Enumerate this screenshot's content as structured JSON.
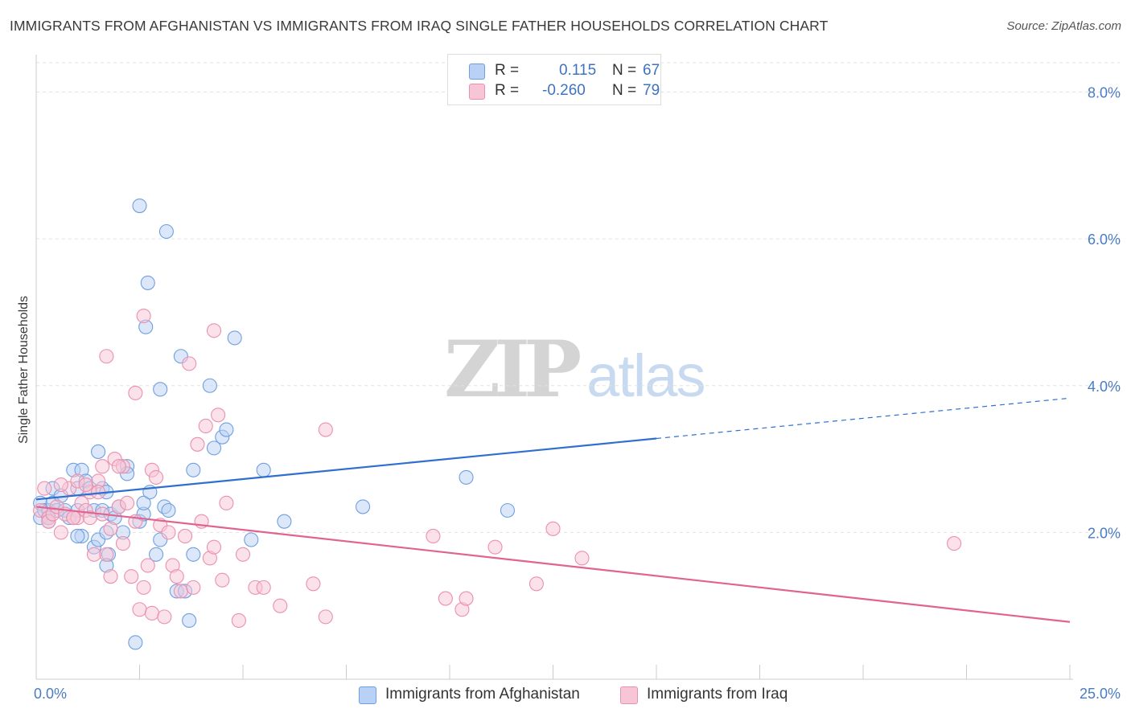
{
  "title": "IMMIGRANTS FROM AFGHANISTAN VS IMMIGRANTS FROM IRAQ SINGLE FATHER HOUSEHOLDS CORRELATION CHART",
  "source": "Source: ZipAtlas.com",
  "watermark": {
    "zip": "ZIP",
    "atlas": "atlas"
  },
  "colors": {
    "afghanistan": "#6f9fe0",
    "afghanistan_fill": "#b9d1f4",
    "afghanistan_line": "#2f6fcf",
    "iraq": "#ec8fae",
    "iraq_fill": "#f7c6d6",
    "iraq_line": "#e0648f",
    "tick_text": "#4a7cc4"
  },
  "stats": {
    "afghanistan": {
      "r_label": "R =",
      "r_value": "0.115",
      "n_label": "N =",
      "n_value": "67"
    },
    "iraq": {
      "r_label": "R =",
      "r_value": "-0.260",
      "n_label": "N =",
      "n_value": "79"
    }
  },
  "legend": {
    "afghanistan": "Immigrants from Afghanistan",
    "iraq": "Immigrants from Iraq"
  },
  "chart_data": {
    "type": "scatter",
    "title": "IMMIGRANTS FROM AFGHANISTAN VS IMMIGRANTS FROM IRAQ SINGLE FATHER HOUSEHOLDS CORRELATION CHART",
    "xlabel": "",
    "ylabel": "Single Father Households",
    "xlim": [
      0,
      25
    ],
    "ylim": [
      0,
      8.4
    ],
    "x_tick_labels": [
      "0.0%",
      "25.0%"
    ],
    "y_ticks": [
      2,
      4,
      6,
      8
    ],
    "y_tick_labels": [
      "2.0%",
      "4.0%",
      "6.0%",
      "8.0%"
    ],
    "grid": true,
    "legend_position": "bottom",
    "series": [
      {
        "name": "Immigrants from Afghanistan",
        "color": "#6f9fe0",
        "points": [
          [
            0.1,
            2.2
          ],
          [
            0.1,
            2.4
          ],
          [
            0.2,
            2.3
          ],
          [
            0.3,
            2.3
          ],
          [
            0.3,
            2.2
          ],
          [
            0.4,
            2.6
          ],
          [
            0.4,
            2.4
          ],
          [
            0.5,
            2.3
          ],
          [
            0.6,
            2.5
          ],
          [
            0.7,
            2.3
          ],
          [
            0.8,
            2.2
          ],
          [
            0.9,
            2.85
          ],
          [
            1.0,
            2.6
          ],
          [
            1.0,
            2.3
          ],
          [
            1.1,
            1.95
          ],
          [
            1.1,
            2.85
          ],
          [
            1.2,
            2.7
          ],
          [
            1.3,
            2.6
          ],
          [
            1.4,
            2.3
          ],
          [
            1.4,
            1.8
          ],
          [
            1.5,
            1.9
          ],
          [
            1.6,
            2.6
          ],
          [
            1.6,
            2.3
          ],
          [
            1.7,
            2.0
          ],
          [
            1.5,
            3.1
          ],
          [
            1.7,
            2.55
          ],
          [
            1.75,
            1.7
          ],
          [
            1.7,
            1.55
          ],
          [
            1.8,
            2.25
          ],
          [
            1.9,
            2.2
          ],
          [
            2.0,
            2.35
          ],
          [
            2.1,
            2.0
          ],
          [
            2.2,
            2.9
          ],
          [
            2.2,
            2.8
          ],
          [
            2.5,
            2.15
          ],
          [
            2.5,
            6.45
          ],
          [
            2.6,
            2.25
          ],
          [
            2.6,
            2.4
          ],
          [
            2.65,
            4.8
          ],
          [
            2.7,
            5.4
          ],
          [
            2.75,
            2.55
          ],
          [
            2.9,
            1.7
          ],
          [
            3.0,
            3.95
          ],
          [
            3.0,
            1.9
          ],
          [
            3.1,
            2.35
          ],
          [
            3.15,
            6.1
          ],
          [
            3.2,
            2.3
          ],
          [
            3.4,
            1.2
          ],
          [
            3.5,
            4.4
          ],
          [
            3.6,
            1.2
          ],
          [
            3.7,
            0.8
          ],
          [
            3.8,
            1.7
          ],
          [
            3.8,
            2.85
          ],
          [
            4.2,
            4.0
          ],
          [
            4.3,
            3.15
          ],
          [
            4.5,
            3.3
          ],
          [
            4.6,
            3.4
          ],
          [
            4.8,
            4.65
          ],
          [
            5.2,
            1.9
          ],
          [
            5.5,
            2.85
          ],
          [
            6.0,
            2.15
          ],
          [
            7.9,
            2.35
          ],
          [
            10.4,
            2.75
          ],
          [
            11.4,
            2.3
          ],
          [
            2.4,
            0.5
          ],
          [
            1.0,
            1.95
          ],
          [
            0.3,
            2.15
          ]
        ]
      },
      {
        "name": "Immigrants from Iraq",
        "color": "#ec8fae",
        "points": [
          [
            0.1,
            2.3
          ],
          [
            0.2,
            2.6
          ],
          [
            0.3,
            2.2
          ],
          [
            0.3,
            2.15
          ],
          [
            0.4,
            2.25
          ],
          [
            0.5,
            2.35
          ],
          [
            0.6,
            2.0
          ],
          [
            0.7,
            2.25
          ],
          [
            0.8,
            2.6
          ],
          [
            0.9,
            2.2
          ],
          [
            1.0,
            2.2
          ],
          [
            1.0,
            2.7
          ],
          [
            1.1,
            2.4
          ],
          [
            1.2,
            2.3
          ],
          [
            1.3,
            2.2
          ],
          [
            1.3,
            2.55
          ],
          [
            1.4,
            1.7
          ],
          [
            1.5,
            2.7
          ],
          [
            1.6,
            2.25
          ],
          [
            1.6,
            2.9
          ],
          [
            1.7,
            1.7
          ],
          [
            1.8,
            2.05
          ],
          [
            1.8,
            1.4
          ],
          [
            1.9,
            3.0
          ],
          [
            2.0,
            2.35
          ],
          [
            2.1,
            2.9
          ],
          [
            2.1,
            1.85
          ],
          [
            2.2,
            2.4
          ],
          [
            2.3,
            1.4
          ],
          [
            2.4,
            2.15
          ],
          [
            2.5,
            0.95
          ],
          [
            2.6,
            4.95
          ],
          [
            2.6,
            1.25
          ],
          [
            2.7,
            1.55
          ],
          [
            2.8,
            0.9
          ],
          [
            2.8,
            2.85
          ],
          [
            2.9,
            2.75
          ],
          [
            3.0,
            2.1
          ],
          [
            3.1,
            0.85
          ],
          [
            3.2,
            2.0
          ],
          [
            3.3,
            1.55
          ],
          [
            3.4,
            1.4
          ],
          [
            3.5,
            1.2
          ],
          [
            3.6,
            1.95
          ],
          [
            3.7,
            4.3
          ],
          [
            3.8,
            1.25
          ],
          [
            3.9,
            3.2
          ],
          [
            4.0,
            2.15
          ],
          [
            4.1,
            3.45
          ],
          [
            4.2,
            1.65
          ],
          [
            4.3,
            1.8
          ],
          [
            4.3,
            4.75
          ],
          [
            4.4,
            3.6
          ],
          [
            4.5,
            1.35
          ],
          [
            4.6,
            2.4
          ],
          [
            4.9,
            0.8
          ],
          [
            5.0,
            1.7
          ],
          [
            5.3,
            1.25
          ],
          [
            5.5,
            1.25
          ],
          [
            5.9,
            1.0
          ],
          [
            6.7,
            1.3
          ],
          [
            7.0,
            0.85
          ],
          [
            7.0,
            3.4
          ],
          [
            9.6,
            1.95
          ],
          [
            9.9,
            1.1
          ],
          [
            10.3,
            0.95
          ],
          [
            10.4,
            1.1
          ],
          [
            11.1,
            1.8
          ],
          [
            12.1,
            1.3
          ],
          [
            12.5,
            2.05
          ],
          [
            13.2,
            1.65
          ],
          [
            22.2,
            1.85
          ],
          [
            1.7,
            4.4
          ],
          [
            2.4,
            3.9
          ],
          [
            1.2,
            2.65
          ],
          [
            1.5,
            2.55
          ],
          [
            2.0,
            2.9
          ],
          [
            0.6,
            2.65
          ],
          [
            0.9,
            2.2
          ]
        ]
      }
    ],
    "trendlines": [
      {
        "series": "Immigrants from Afghanistan",
        "x_start": 0,
        "y_start": 2.45,
        "x_end": 15,
        "y_end": 3.28,
        "dashed_to_x": 25,
        "dashed_to_y": 3.83
      },
      {
        "series": "Immigrants from Iraq",
        "x_start": 0,
        "y_start": 2.35,
        "x_end": 25,
        "y_end": 0.78
      }
    ]
  }
}
